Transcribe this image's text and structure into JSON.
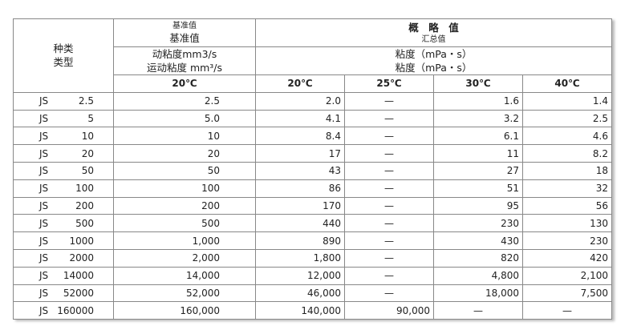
{
  "header": {
    "type_label_1": "种类",
    "type_label_2": "类型",
    "ref_small": "基准值",
    "ref_big": "基准值",
    "ref_unit_1": "动粘度mm3/s",
    "ref_unit_2": "运动粘度 mm³/s",
    "approx_big": "概　略　值",
    "approx_small": "汇总值",
    "approx_unit_1": "粘度（mPa・s）",
    "approx_unit_2": "粘度（mPa・s）",
    "temps": [
      "20℃",
      "20℃",
      "25℃",
      "30℃",
      "40℃"
    ]
  },
  "rows": [
    {
      "prefix": "JS",
      "grade": "2.5",
      "v": [
        "2.5",
        "2.0",
        "—",
        "1.6",
        "1.4"
      ]
    },
    {
      "prefix": "JS",
      "grade": "5",
      "v": [
        "5.0",
        "4.1",
        "—",
        "3.2",
        "2.5"
      ]
    },
    {
      "prefix": "JS",
      "grade": "10",
      "v": [
        "10",
        "8.4",
        "—",
        "6.1",
        "4.6"
      ]
    },
    {
      "prefix": "JS",
      "grade": "20",
      "v": [
        "20",
        "17",
        "—",
        "11",
        "8.2"
      ]
    },
    {
      "prefix": "JS",
      "grade": "50",
      "v": [
        "50",
        "43",
        "—",
        "27",
        "18"
      ]
    },
    {
      "prefix": "JS",
      "grade": "100",
      "v": [
        "100",
        "86",
        "—",
        "51",
        "32"
      ]
    },
    {
      "prefix": "JS",
      "grade": "200",
      "v": [
        "200",
        "170",
        "—",
        "95",
        "56"
      ]
    },
    {
      "prefix": "JS",
      "grade": "500",
      "v": [
        "500",
        "440",
        "—",
        "230",
        "130"
      ]
    },
    {
      "prefix": "JS",
      "grade": "1000",
      "v": [
        "1,000",
        "890",
        "—",
        "430",
        "230"
      ]
    },
    {
      "prefix": "JS",
      "grade": "2000",
      "v": [
        "2,000",
        "1,800",
        "—",
        "820",
        "420"
      ]
    },
    {
      "prefix": "JS",
      "grade": "14000",
      "v": [
        "14,000",
        "12,000",
        "—",
        "4,800",
        "2,100"
      ]
    },
    {
      "prefix": "JS",
      "grade": "52000",
      "v": [
        "52,000",
        "46,000",
        "—",
        "18,000",
        "7,500"
      ]
    },
    {
      "prefix": "JS",
      "grade": "160000",
      "v": [
        "160,000",
        "140,000",
        "90,000",
        "—",
        "—"
      ]
    }
  ]
}
